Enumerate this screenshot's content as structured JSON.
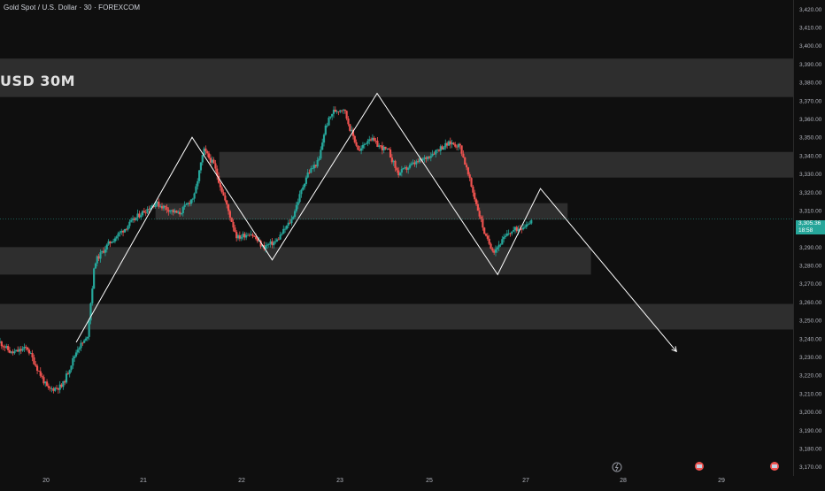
{
  "header": {
    "symbol_title": "Gold Spot / U.S. Dollar · 30 · FOREXCOM",
    "zone_label": "USD  30M"
  },
  "price_badge": {
    "price": "3,305.36",
    "countdown": "18:58"
  },
  "colors": {
    "background": "#0f0f0f",
    "up_candle": "#26a69a",
    "down_candle": "#ef5350",
    "zone_fill": "#3a3a3a",
    "projection_line": "#ffffff",
    "axis_text": "#b2b5be"
  },
  "chart_data": {
    "type": "candlestick",
    "title": "Gold Spot / U.S. Dollar · 30 · FOREXCOM",
    "y_axis": {
      "position": "right",
      "ylim": [
        3165,
        3425
      ],
      "ticks": [
        3170,
        3180,
        3190,
        3200,
        3210,
        3220,
        3230,
        3240,
        3250,
        3260,
        3270,
        3280,
        3290,
        3300,
        3310,
        3320,
        3330,
        3340,
        3350,
        3360,
        3370,
        3380,
        3390,
        3400,
        3410,
        3420
      ],
      "tick_labels": [
        "3,170.00",
        "3,180.00",
        "3,190.00",
        "3,200.00",
        "3,210.00",
        "3,220.00",
        "3,230.00",
        "3,240.00",
        "3,250.00",
        "3,260.00",
        "3,270.00",
        "3,280.00",
        "3,290.00",
        "3,300.00",
        "3,310.00",
        "3,320.00",
        "3,330.00",
        "3,340.00",
        "3,350.00",
        "3,360.00",
        "3,370.00",
        "3,380.00",
        "3,390.00",
        "3,400.00",
        "3,410.00",
        "3,420.00"
      ]
    },
    "x_axis": {
      "xlim": [
        19.5,
        29.7
      ],
      "ticks": [
        20,
        21,
        22,
        23,
        25,
        27,
        28,
        29
      ],
      "tick_labels": [
        "20",
        "21",
        "22",
        "23",
        "25",
        "27",
        "28",
        "29"
      ]
    },
    "price_path": [
      [
        19.5,
        3238
      ],
      [
        19.65,
        3232
      ],
      [
        19.85,
        3235
      ],
      [
        20.0,
        3222
      ],
      [
        20.12,
        3212
      ],
      [
        20.3,
        3214
      ],
      [
        20.5,
        3235
      ],
      [
        20.62,
        3240
      ],
      [
        20.72,
        3282
      ],
      [
        20.9,
        3292
      ],
      [
        21.1,
        3300
      ],
      [
        21.3,
        3308
      ],
      [
        21.5,
        3314
      ],
      [
        21.8,
        3308
      ],
      [
        22.0,
        3318
      ],
      [
        22.12,
        3343
      ],
      [
        22.25,
        3335
      ],
      [
        22.42,
        3312
      ],
      [
        22.55,
        3295
      ],
      [
        22.72,
        3298
      ],
      [
        22.88,
        3290
      ],
      [
        23.05,
        3293
      ],
      [
        23.25,
        3305
      ],
      [
        23.45,
        3330
      ],
      [
        23.6,
        3337
      ],
      [
        23.68,
        3355
      ],
      [
        23.78,
        3364
      ],
      [
        23.92,
        3366
      ],
      [
        24.0,
        3355
      ],
      [
        24.12,
        3342
      ],
      [
        24.25,
        3350
      ],
      [
        24.35,
        3346
      ],
      [
        24.5,
        3342
      ],
      [
        24.62,
        3330
      ],
      [
        24.8,
        3335
      ],
      [
        24.95,
        3338
      ],
      [
        25.15,
        3344
      ],
      [
        25.3,
        3347
      ],
      [
        25.42,
        3345
      ],
      [
        25.55,
        3325
      ],
      [
        25.65,
        3310
      ],
      [
        25.75,
        3295
      ],
      [
        25.85,
        3288
      ],
      [
        25.95,
        3293
      ],
      [
        26.05,
        3298
      ],
      [
        26.15,
        3300
      ],
      [
        26.25,
        3302
      ],
      [
        26.35,
        3305.36
      ]
    ],
    "zones": [
      {
        "from": 3372,
        "to": 3393,
        "x_end": "right-edge"
      },
      {
        "from": 3328,
        "to": 3342,
        "x_start": 22.32,
        "x_end": "right-edge"
      },
      {
        "from": 3305,
        "to": 3314,
        "x_start": 21.5,
        "x_end": 26.8
      },
      {
        "from": 3275,
        "to": 3290,
        "x_end": 27.1
      },
      {
        "from": 3245,
        "to": 3259,
        "x_end": "right-edge"
      }
    ],
    "projection_path": [
      [
        20.48,
        3238
      ],
      [
        21.97,
        3350
      ],
      [
        23.0,
        3283
      ],
      [
        24.35,
        3374
      ],
      [
        25.9,
        3275
      ],
      [
        26.45,
        3322
      ],
      [
        28.2,
        3233
      ]
    ],
    "current_price": 3305.36,
    "legend": "none",
    "grid": false
  }
}
